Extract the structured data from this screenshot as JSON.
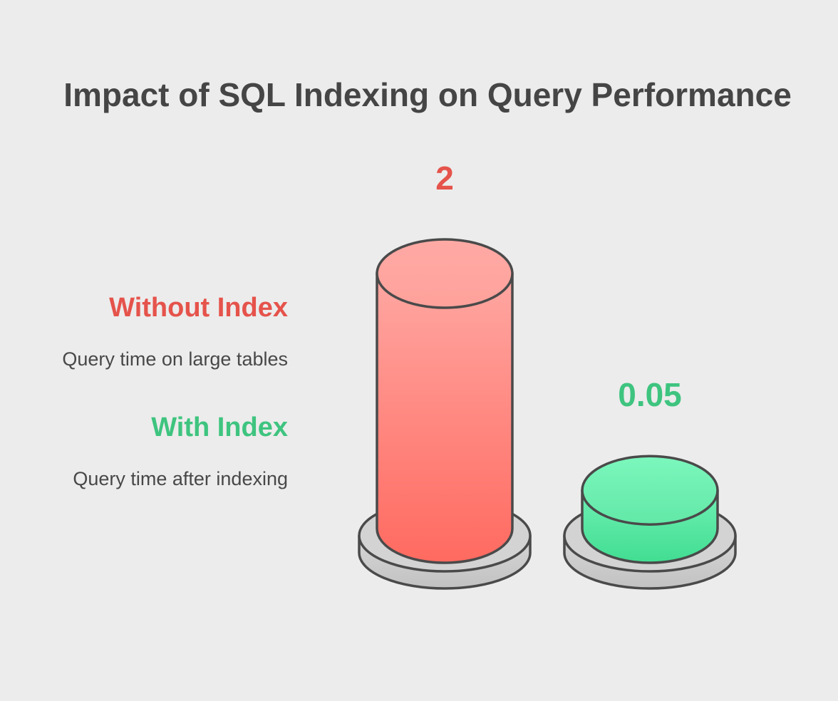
{
  "chart_data": {
    "type": "bar",
    "title": "Impact of SQL Indexing on Query Performance",
    "categories": [
      "Without Index",
      "With Index"
    ],
    "values": [
      2,
      0.05
    ],
    "value_labels": [
      "2",
      "0.05"
    ],
    "descriptions": [
      "Query time on large tables",
      "Query time after indexing"
    ],
    "colors": [
      "#e5534b",
      "#3ec47f"
    ],
    "legend_position": "left",
    "grid": false
  }
}
